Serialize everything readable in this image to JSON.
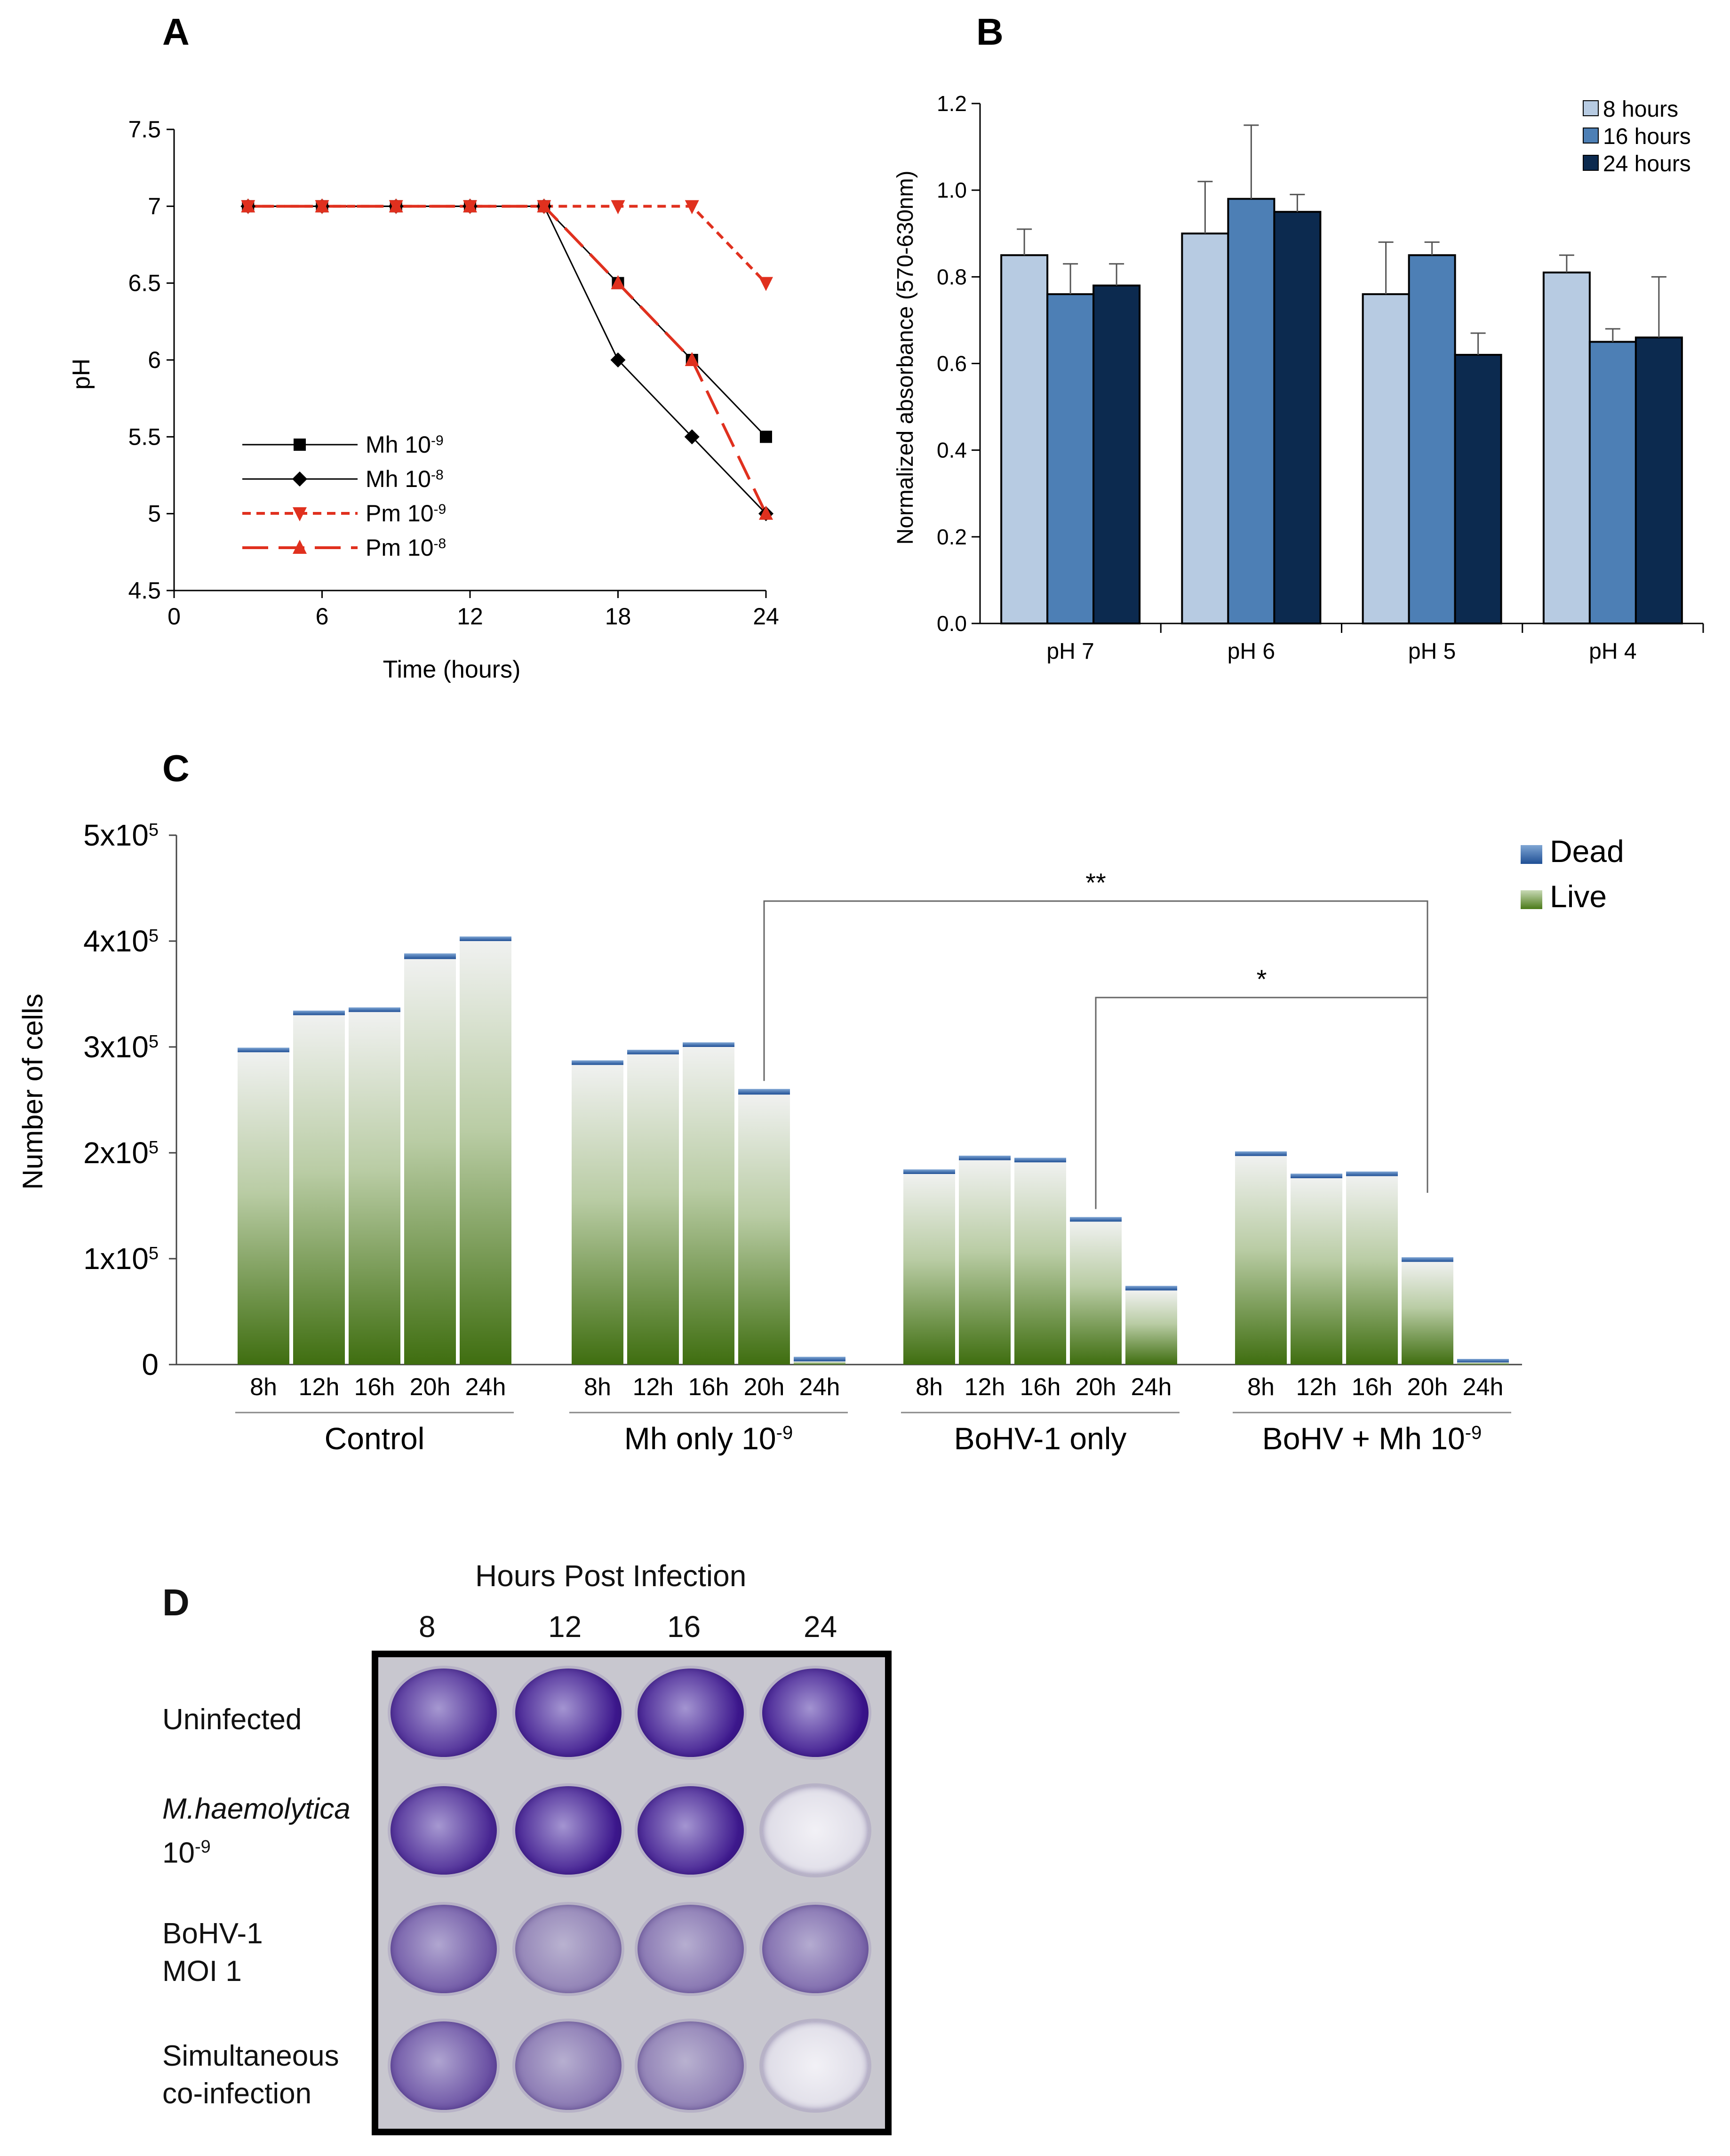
{
  "chart_data": [
    {
      "panel": "A",
      "type": "line",
      "xlabel": "Time (hours)",
      "ylabel": "pH",
      "xlim": [
        0,
        24
      ],
      "ylim": [
        4.5,
        7.5
      ],
      "x_ticks": [
        "0",
        "6",
        "12",
        "18",
        "24"
      ],
      "y_ticks": [
        "7.5",
        "7",
        "6.5",
        "6",
        "5.5",
        "5",
        "4.5"
      ],
      "x": [
        3,
        6,
        9,
        12,
        15,
        18,
        21,
        24
      ],
      "series": [
        {
          "name": "Mh 10",
          "exp": "-9",
          "marker": "square",
          "color": "#000000",
          "dash": "solid",
          "values": [
            7,
            7,
            7,
            7,
            7,
            6.5,
            6.0,
            5.5
          ]
        },
        {
          "name": "Mh 10",
          "exp": "-8",
          "marker": "diamond",
          "color": "#000000",
          "dash": "solid",
          "values": [
            7,
            7,
            7,
            7,
            7,
            6.0,
            5.5,
            5.0
          ]
        },
        {
          "name": "Pm 10",
          "exp": "-9",
          "marker": "triangle-down",
          "color": "#e0301e",
          "dash": "short",
          "values": [
            7,
            7,
            7,
            7,
            7,
            7,
            7,
            6.5
          ]
        },
        {
          "name": "Pm 10",
          "exp": "-8",
          "marker": "triangle-up",
          "color": "#e0301e",
          "dash": "long",
          "values": [
            7,
            7,
            7,
            7,
            7,
            6.5,
            6.0,
            5.0
          ]
        }
      ],
      "legend_position": "bottom-left"
    },
    {
      "panel": "B",
      "type": "bar",
      "xlabel": "",
      "ylabel": "Normalized absorbance (570-630nm)",
      "ylim": [
        0,
        1.2
      ],
      "y_ticks": [
        "1.2",
        "1.0",
        "0.8",
        "0.6",
        "0.4",
        "0.2",
        "0.0"
      ],
      "categories": [
        "pH 7",
        "pH 6",
        "pH 5",
        "pH 4"
      ],
      "series": [
        {
          "name": "8 hours",
          "color": "#b7cbe2",
          "values": [
            0.85,
            0.9,
            0.76,
            0.81
          ],
          "errors": [
            0.06,
            0.12,
            0.12,
            0.04
          ]
        },
        {
          "name": "16 hours",
          "color": "#4d7fb5",
          "values": [
            0.76,
            0.98,
            0.85,
            0.65
          ],
          "errors": [
            0.07,
            0.17,
            0.03,
            0.03
          ]
        },
        {
          "name": "24 hours",
          "color": "#0c2a4f",
          "values": [
            0.78,
            0.95,
            0.62,
            0.66
          ],
          "errors": [
            0.05,
            0.04,
            0.05,
            0.14
          ]
        }
      ],
      "legend_position": "top-right"
    },
    {
      "panel": "C",
      "type": "bar",
      "stacked": true,
      "ylabel": "Number of cells",
      "ylim": [
        0,
        500000
      ],
      "y_ticks": [
        {
          "mant": "5x10",
          "exp": "5"
        },
        {
          "mant": "4x10",
          "exp": "5"
        },
        {
          "mant": "3x10",
          "exp": "5"
        },
        {
          "mant": "2x10",
          "exp": "5"
        },
        {
          "mant": "1x10",
          "exp": "5"
        },
        {
          "mant": "0",
          "exp": ""
        }
      ],
      "legend": [
        "Dead",
        "Live"
      ],
      "legend_position": "top-right",
      "groups": [
        {
          "label": "Control",
          "exp": "",
          "times": [
            "8h",
            "12h",
            "16h",
            "20h",
            "24h"
          ],
          "live": [
            295000,
            330000,
            333000,
            383000,
            400000
          ],
          "dead": [
            3000,
            3000,
            3000,
            4000,
            3000
          ]
        },
        {
          "label": "Mh only 10",
          "exp": "-9",
          "times": [
            "8h",
            "12h",
            "16h",
            "20h",
            "24h"
          ],
          "live": [
            283000,
            293000,
            300000,
            255000,
            3000
          ],
          "dead": [
            3000,
            3000,
            3000,
            4000,
            3000
          ]
        },
        {
          "label": "BoHV-1 only",
          "exp": "",
          "times": [
            "8h",
            "12h",
            "16h",
            "20h",
            "24h"
          ],
          "live": [
            180000,
            193000,
            191000,
            135000,
            70000
          ],
          "dead": [
            3000,
            3000,
            3000,
            3000,
            3000
          ]
        },
        {
          "label": "BoHV + Mh 10",
          "exp": "-9",
          "times": [
            "8h",
            "12h",
            "16h",
            "20h",
            "24h"
          ],
          "live": [
            197000,
            176000,
            178000,
            97000,
            2000
          ],
          "dead": [
            3000,
            3000,
            3000,
            3000,
            2000
          ]
        }
      ],
      "annotations": [
        {
          "text": "**",
          "from": [
            1,
            3
          ],
          "to": [
            3,
            3
          ]
        },
        {
          "text": "*",
          "from": [
            2,
            3
          ],
          "to": [
            3,
            3
          ]
        }
      ]
    }
  ],
  "panels": {
    "a": "A",
    "b": "B",
    "c": "C",
    "d": "D"
  },
  "panel_d": {
    "header": "Hours Post Infection",
    "hours": [
      "8",
      "12",
      "16",
      "24"
    ],
    "rows": [
      {
        "line1": "Uninfected",
        "line1_italic": false,
        "line2": "",
        "line2_exp": "",
        "wells": [
          0.85,
          0.97,
          0.97,
          1.0
        ]
      },
      {
        "line1": "M.haemolytica",
        "line1_italic": true,
        "line2": "10",
        "line2_exp": "-9",
        "wells": [
          0.85,
          0.97,
          0.95,
          0.0
        ]
      },
      {
        "line1": "BoHV-1",
        "line1_italic": false,
        "line2": "MOI 1",
        "line2_exp": "",
        "wells": [
          0.45,
          0.1,
          0.22,
          0.3
        ]
      },
      {
        "line1": "Simultaneous",
        "line1_italic": false,
        "line2": "co-infection",
        "line2_exp": "",
        "wells": [
          0.5,
          0.2,
          0.12,
          0.02
        ]
      }
    ]
  }
}
